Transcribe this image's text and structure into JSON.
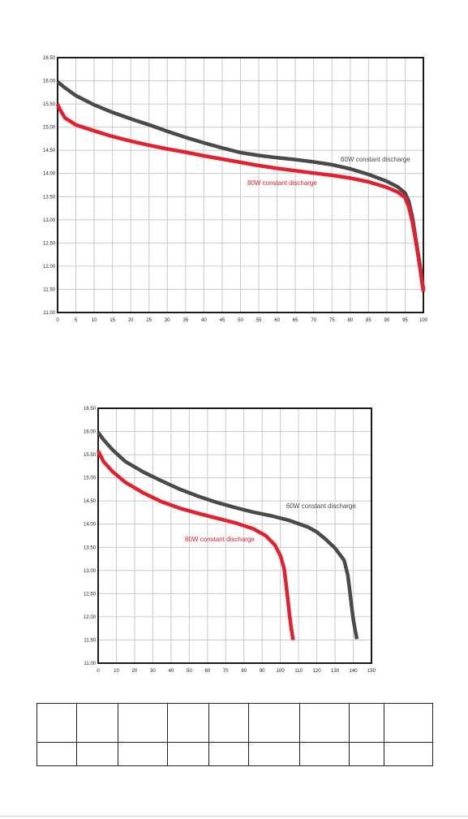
{
  "chart_data": [
    {
      "type": "line",
      "title": "",
      "xlabel": "",
      "ylabel": "",
      "xlim": [
        0,
        100
      ],
      "ylim": [
        11.0,
        16.5
      ],
      "x_ticks": [
        0,
        5,
        10,
        15,
        20,
        25,
        30,
        35,
        40,
        45,
        50,
        55,
        60,
        65,
        70,
        75,
        80,
        85,
        90,
        95,
        100
      ],
      "y_ticks": [
        11.0,
        11.5,
        12.0,
        12.5,
        13.0,
        13.5,
        14.0,
        14.5,
        15.0,
        15.5,
        16.0,
        16.5
      ],
      "y_tick_labels": [
        "11.00",
        "11.50",
        "12.00",
        "12.50",
        "13.00",
        "13.50",
        "14.00",
        "14.50",
        "15.00",
        "15.50",
        "16.00",
        "16.50"
      ],
      "grid": true,
      "series": [
        {
          "name": "60W constant discharge",
          "color": "#4a4a4a",
          "x": [
            0,
            2,
            5,
            10,
            15,
            20,
            25,
            30,
            35,
            40,
            45,
            50,
            55,
            60,
            65,
            70,
            75,
            80,
            85,
            90,
            93,
            95,
            96,
            97,
            98,
            99,
            100
          ],
          "y": [
            15.98,
            15.85,
            15.68,
            15.48,
            15.32,
            15.18,
            15.05,
            14.91,
            14.78,
            14.66,
            14.55,
            14.45,
            14.39,
            14.34,
            14.3,
            14.25,
            14.19,
            14.1,
            13.98,
            13.83,
            13.71,
            13.58,
            13.4,
            13.05,
            12.55,
            12.05,
            11.5
          ]
        },
        {
          "name": "80W constant discharge",
          "color": "#e3202e",
          "x": [
            0,
            0.5,
            2,
            5,
            10,
            15,
            20,
            25,
            30,
            35,
            40,
            45,
            50,
            55,
            60,
            65,
            70,
            75,
            80,
            85,
            90,
            93,
            95,
            96,
            97,
            98,
            99,
            100
          ],
          "y": [
            15.5,
            15.4,
            15.2,
            15.05,
            14.92,
            14.8,
            14.7,
            14.61,
            14.53,
            14.46,
            14.38,
            14.31,
            14.24,
            14.17,
            14.11,
            14.06,
            14.01,
            13.96,
            13.9,
            13.82,
            13.7,
            13.6,
            13.48,
            13.28,
            12.95,
            12.5,
            12.0,
            11.45
          ]
        }
      ]
    },
    {
      "type": "line",
      "title": "",
      "xlabel": "",
      "ylabel": "",
      "xlim": [
        0,
        150
      ],
      "ylim": [
        11.0,
        16.5
      ],
      "x_ticks": [
        0,
        10,
        20,
        30,
        40,
        50,
        60,
        70,
        80,
        90,
        100,
        110,
        120,
        130,
        140,
        150
      ],
      "y_ticks": [
        11.0,
        11.5,
        12.0,
        12.5,
        13.0,
        13.5,
        14.0,
        14.5,
        15.0,
        15.5,
        16.0,
        16.5
      ],
      "y_tick_labels": [
        "11.00",
        "11.50",
        "12.00",
        "12.50",
        "13.00",
        "13.50",
        "14.00",
        "14.50",
        "15.00",
        "15.50",
        "16.00",
        "16.50"
      ],
      "grid": true,
      "series": [
        {
          "name": "60W constant discharge",
          "color": "#4a4a4a",
          "x": [
            0,
            3,
            8,
            15,
            25,
            35,
            45,
            55,
            65,
            75,
            85,
            95,
            105,
            115,
            120,
            125,
            130,
            135,
            137,
            138,
            139,
            140,
            141,
            142
          ],
          "y": [
            15.98,
            15.82,
            15.6,
            15.35,
            15.12,
            14.93,
            14.75,
            14.6,
            14.47,
            14.36,
            14.26,
            14.18,
            14.08,
            13.94,
            13.83,
            13.67,
            13.48,
            13.22,
            12.9,
            12.6,
            12.25,
            11.95,
            11.72,
            11.52
          ]
        },
        {
          "name": "80W constant discharge",
          "color": "#e3202e",
          "x": [
            0,
            3,
            8,
            15,
            25,
            35,
            45,
            55,
            65,
            75,
            85,
            92,
            97,
            100,
            102,
            103,
            104,
            105,
            106,
            107
          ],
          "y": [
            15.58,
            15.35,
            15.13,
            14.9,
            14.67,
            14.48,
            14.34,
            14.23,
            14.13,
            14.03,
            13.9,
            13.75,
            13.55,
            13.32,
            13.05,
            12.75,
            12.4,
            12.05,
            11.75,
            11.5
          ]
        }
      ]
    }
  ],
  "table": {
    "rows": [
      [
        "",
        "",
        "",
        "",
        "",
        "",
        "",
        "",
        ""
      ],
      [
        "",
        "",
        "",
        "",
        "",
        "",
        "",
        "",
        ""
      ]
    ]
  }
}
